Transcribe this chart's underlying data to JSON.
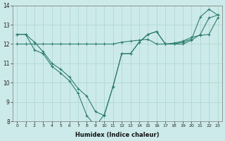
{
  "xlabel": "Humidex (Indice chaleur)",
  "x": [
    0,
    1,
    2,
    3,
    4,
    5,
    6,
    7,
    8,
    9,
    10,
    11,
    12,
    13,
    14,
    15,
    16,
    17,
    18,
    19,
    20,
    21,
    22,
    23
  ],
  "line1": [
    12.5,
    12.5,
    12.1,
    11.6,
    11.0,
    10.7,
    10.3,
    9.7,
    9.3,
    8.5,
    8.3,
    9.8,
    11.5,
    11.5,
    12.1,
    12.5,
    12.65,
    12.0,
    12.0,
    12.1,
    12.25,
    13.4,
    13.8,
    13.5
  ],
  "line2": [
    12.0,
    12.0,
    12.0,
    12.0,
    12.0,
    12.0,
    12.0,
    12.0,
    12.0,
    12.0,
    12.0,
    12.0,
    12.1,
    12.15,
    12.2,
    12.25,
    12.0,
    12.0,
    12.0,
    12.0,
    12.2,
    12.5,
    13.35,
    13.5
  ],
  "line3": [
    12.5,
    12.5,
    11.7,
    11.5,
    10.85,
    10.5,
    10.1,
    9.45,
    8.3,
    7.75,
    8.35,
    9.8,
    11.5,
    11.5,
    12.1,
    12.5,
    12.65,
    12.0,
    12.05,
    12.15,
    12.35,
    12.45,
    12.5,
    13.35
  ],
  "bg_color": "#cdeaea",
  "line_color": "#2e7d6e",
  "grid_color": "#a8d4d0",
  "ylim": [
    8,
    14
  ],
  "xlim": [
    -0.5,
    23.5
  ],
  "yticks": [
    8,
    9,
    10,
    11,
    12,
    13,
    14
  ],
  "xticks": [
    0,
    1,
    2,
    3,
    4,
    5,
    6,
    7,
    8,
    9,
    10,
    11,
    12,
    13,
    14,
    15,
    16,
    17,
    18,
    19,
    20,
    21,
    22,
    23
  ]
}
